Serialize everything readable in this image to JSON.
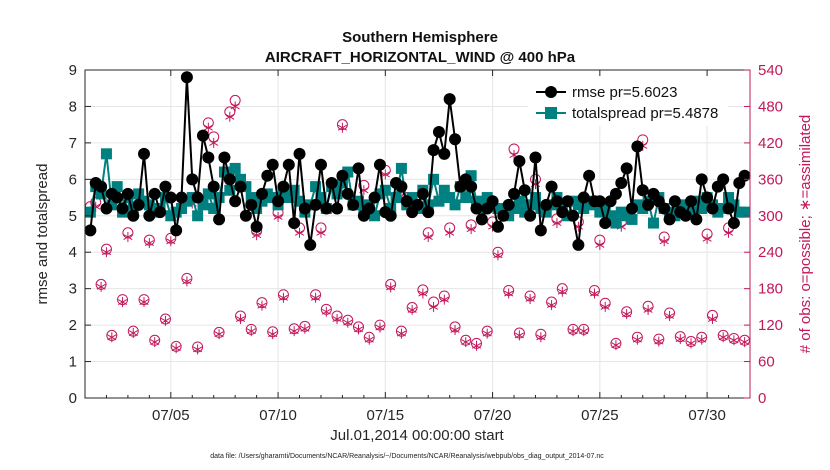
{
  "chart_data": {
    "type": "line",
    "title": [
      "Southern Hemisphere",
      "AIRCRAFT_HORIZONTAL_WIND @ 400 hPa"
    ],
    "xlabel": "Jul.01,2014 00:00:00 start",
    "ylabel": "rmse and totalspread",
    "ylabel_right": "# of obs: o=possible; ∗=assimilated",
    "footnote": "data file: /Users/gharamti/Documents/NCAR/Reanalysis/~/Documents/NCAR/Reanalysis/webpub/obs_diag_output_2014-07.nc",
    "xlim": [
      1.0,
      32.0
    ],
    "ylim": [
      0,
      9
    ],
    "ylim_right": [
      0,
      540
    ],
    "xticks": [
      5,
      10,
      15,
      20,
      25,
      30
    ],
    "xtick_labels": [
      "07/05",
      "07/10",
      "07/15",
      "07/20",
      "07/25",
      "07/30"
    ],
    "yticks": [
      0,
      1,
      2,
      3,
      4,
      5,
      6,
      7,
      8,
      9
    ],
    "yticks_right": [
      0,
      60,
      120,
      180,
      240,
      300,
      360,
      420,
      480,
      540
    ],
    "grid": true,
    "legend_position": "top-right",
    "colors": {
      "rmse": "#000000",
      "totalspread": "#008080",
      "obs": "#c2185b"
    },
    "series": [
      {
        "name": "rmse pr=5.6023",
        "axis": "left",
        "x": [
          1.25,
          1.5,
          1.75,
          2.0,
          2.25,
          2.5,
          2.75,
          3.0,
          3.25,
          3.5,
          3.75,
          4.0,
          4.25,
          4.5,
          4.75,
          5.0,
          5.25,
          5.5,
          5.75,
          6.0,
          6.25,
          6.5,
          6.75,
          7.0,
          7.25,
          7.5,
          7.75,
          8.0,
          8.25,
          8.5,
          8.75,
          9.0,
          9.25,
          9.5,
          9.75,
          10.0,
          10.25,
          10.5,
          10.75,
          11.0,
          11.25,
          11.5,
          11.75,
          12.0,
          12.25,
          12.5,
          12.75,
          13.0,
          13.25,
          13.5,
          13.75,
          14.0,
          14.25,
          14.5,
          14.75,
          15.0,
          15.25,
          15.5,
          15.75,
          16.0,
          16.25,
          16.5,
          16.75,
          17.0,
          17.25,
          17.5,
          17.75,
          18.0,
          18.25,
          18.5,
          18.75,
          19.0,
          19.25,
          19.5,
          19.75,
          20.0,
          20.25,
          20.5,
          20.75,
          21.0,
          21.25,
          21.5,
          21.75,
          22.0,
          22.25,
          22.5,
          22.75,
          23.0,
          23.25,
          23.5,
          23.75,
          24.0,
          24.25,
          24.5,
          24.75,
          25.0,
          25.25,
          25.5,
          25.75,
          26.0,
          26.25,
          26.5,
          26.75,
          27.0,
          27.25,
          27.5,
          27.75,
          28.0,
          28.25,
          28.5,
          28.75,
          29.0,
          29.25,
          29.5,
          29.75,
          30.0,
          30.25,
          30.5,
          30.75,
          31.0,
          31.25,
          31.5,
          31.75
        ],
        "values": [
          4.6,
          5.9,
          5.8,
          5.2,
          5.6,
          5.5,
          5.2,
          5.6,
          5.0,
          5.3,
          6.7,
          5.0,
          5.6,
          5.1,
          5.8,
          5.5,
          4.6,
          5.5,
          8.8,
          6.0,
          5.5,
          7.2,
          6.6,
          5.8,
          4.9,
          6.6,
          6.0,
          5.4,
          5.8,
          5.0,
          5.3,
          4.7,
          5.6,
          6.1,
          6.4,
          5.4,
          5.8,
          6.4,
          4.8,
          6.7,
          5.2,
          4.2,
          5.3,
          6.4,
          5.2,
          5.9,
          5.2,
          6.1,
          5.6,
          5.3,
          6.3,
          5.0,
          5.2,
          5.5,
          6.4,
          5.1,
          5.0,
          5.9,
          5.8,
          5.4,
          5.1,
          5.3,
          5.6,
          5.1,
          6.8,
          7.3,
          6.7,
          8.2,
          7.1,
          5.8,
          6.0,
          5.8,
          5.2,
          4.9,
          5.2,
          5.4,
          4.7,
          5.0,
          5.3,
          5.6,
          6.5,
          5.7,
          5.0,
          6.6,
          4.6,
          5.3,
          5.8,
          5.4,
          5.1,
          5.4,
          5.0,
          4.2,
          5.5,
          6.1,
          5.4,
          5.4,
          4.8,
          5.4,
          5.6,
          5.9,
          6.3,
          5.2,
          6.9,
          5.7,
          5.3,
          5.6,
          5.4,
          5.2,
          4.9,
          5.4,
          5.1,
          5.0,
          5.4,
          4.9,
          6.0,
          5.5,
          5.2,
          5.8,
          6.0,
          5.2,
          4.8,
          5.9,
          6.1
        ]
      },
      {
        "name": "totalspread pr=5.4878",
        "axis": "left",
        "x": [
          1.25,
          1.5,
          1.75,
          2.0,
          2.25,
          2.5,
          2.75,
          3.0,
          3.25,
          3.5,
          3.75,
          4.0,
          4.25,
          4.5,
          4.75,
          5.0,
          5.25,
          5.5,
          5.75,
          6.0,
          6.25,
          6.5,
          6.75,
          7.0,
          7.25,
          7.5,
          7.75,
          8.0,
          8.25,
          8.5,
          8.75,
          9.0,
          9.25,
          9.5,
          9.75,
          10.0,
          10.25,
          10.5,
          10.75,
          11.0,
          11.25,
          11.5,
          11.75,
          12.0,
          12.25,
          12.5,
          12.75,
          13.0,
          13.25,
          13.5,
          13.75,
          14.0,
          14.25,
          14.5,
          14.75,
          15.0,
          15.25,
          15.5,
          15.75,
          16.0,
          16.25,
          16.5,
          16.75,
          17.0,
          17.25,
          17.5,
          17.75,
          18.0,
          18.25,
          18.5,
          18.75,
          19.0,
          19.25,
          19.5,
          19.75,
          20.0,
          20.25,
          20.5,
          20.75,
          21.0,
          21.25,
          21.5,
          21.75,
          22.0,
          22.25,
          22.5,
          22.75,
          23.0,
          23.25,
          23.5,
          23.75,
          24.0,
          24.25,
          24.5,
          24.75,
          25.0,
          25.25,
          25.5,
          25.75,
          26.0,
          26.25,
          26.5,
          26.75,
          27.0,
          27.25,
          27.5,
          27.75,
          28.0,
          28.25,
          28.5,
          28.75,
          29.0,
          29.25,
          29.5,
          29.75,
          30.0,
          30.25,
          30.5,
          30.75,
          31.0,
          31.25,
          31.5,
          31.75
        ],
        "values": [
          5.1,
          5.8,
          5.6,
          6.7,
          5.3,
          5.8,
          5.1,
          5.5,
          5.2,
          5.6,
          5.4,
          5.3,
          5.1,
          5.2,
          5.5,
          5.0,
          5.1,
          5.2,
          5.4,
          5.5,
          5.0,
          5.3,
          5.6,
          5.2,
          5.5,
          6.2,
          5.7,
          6.3,
          6.0,
          5.8,
          5.5,
          5.2,
          5.4,
          5.6,
          5.5,
          5.3,
          5.6,
          5.5,
          5.7,
          5.4,
          5.1,
          5.3,
          5.8,
          5.5,
          5.2,
          5.8,
          5.6,
          5.9,
          6.2,
          5.3,
          5.4,
          5.1,
          5.3,
          5.0,
          5.6,
          5.7,
          5.2,
          5.5,
          6.3,
          5.3,
          5.5,
          5.2,
          5.7,
          5.3,
          6.0,
          5.4,
          5.7,
          5.5,
          5.3,
          5.8,
          5.5,
          6.1,
          5.4,
          5.2,
          5.5,
          5.3,
          5.2,
          5.1,
          5.0,
          5.2,
          5.4,
          5.1,
          5.3,
          5.5,
          5.2,
          5.1,
          5.3,
          5.5,
          5.2,
          5.0,
          5.4,
          5.3,
          5.2,
          5.3,
          5.4,
          5.1,
          5.2,
          5.0,
          4.8,
          5.1,
          5.0,
          4.9,
          5.3,
          5.2,
          5.4,
          4.8,
          5.5,
          5.2,
          5.1,
          5.0,
          5.2,
          5.3,
          5.1,
          5.4,
          5.2,
          5.5,
          5.3,
          5.1,
          5.2,
          5.5,
          5.3,
          5.1,
          5.1
        ]
      },
      {
        "name": "possible",
        "axis": "right",
        "marker": "circle",
        "x": [
          1.25,
          1.75,
          2.25,
          2.75,
          3.25,
          3.75,
          4.25,
          4.75,
          5.25,
          5.75,
          6.25,
          6.75,
          7.25,
          7.75,
          8.25,
          8.75,
          9.25,
          9.75,
          10.25,
          10.75,
          11.25,
          11.75,
          12.25,
          12.75,
          13.25,
          13.75,
          14.25,
          14.75,
          15.25,
          15.75,
          16.25,
          16.75,
          17.25,
          17.75,
          18.25,
          18.75,
          19.25,
          19.75,
          20.25,
          20.75,
          21.25,
          21.75,
          22.25,
          22.75,
          23.25,
          23.75,
          24.25,
          24.75,
          25.25,
          25.75,
          26.25,
          26.75,
          27.25,
          27.75,
          28.25,
          28.75,
          29.25,
          29.75,
          30.25,
          30.75,
          31.25,
          31.75,
          1.5,
          2.0,
          3.0,
          4.0,
          5.0,
          6.0,
          7.0,
          8.0,
          9.0,
          10.0,
          11.0,
          12.0,
          13.0,
          14.0,
          15.0,
          16.0,
          17.0,
          18.0,
          19.0,
          20.0,
          21.0,
          22.0,
          23.0,
          24.0,
          25.0,
          26.0,
          27.0,
          28.0,
          29.0,
          30.0,
          31.0
        ],
        "values": [
          315,
          187,
          103,
          162,
          110,
          162,
          95,
          130,
          85,
          197,
          84,
          453,
          108,
          471,
          135,
          113,
          157,
          109,
          170,
          114,
          118,
          170,
          146,
          135,
          128,
          117,
          100,
          120,
          187,
          110,
          149,
          178,
          158,
          168,
          117,
          95,
          90,
          110,
          240,
          177,
          107,
          168,
          105,
          158,
          180,
          113,
          113,
          177,
          156,
          90,
          142,
          100,
          151,
          97,
          140,
          101,
          93,
          100,
          136,
          103,
          98,
          95,
          322,
          245,
          272,
          260,
          263,
          330,
          430,
          490,
          275,
          305,
          280,
          280,
          450,
          350,
          375,
          330,
          272,
          280,
          285,
          290,
          410,
          360,
          295,
          290,
          260,
          290,
          425,
          265,
          315,
          270,
          280
        ]
      },
      {
        "name": "assimilated",
        "axis": "right",
        "marker": "asterisk",
        "x": [
          1.25,
          1.75,
          2.25,
          2.75,
          3.25,
          3.75,
          4.25,
          4.75,
          5.25,
          5.75,
          6.25,
          6.75,
          7.25,
          7.75,
          8.25,
          8.75,
          9.25,
          9.75,
          10.25,
          10.75,
          11.25,
          11.75,
          12.25,
          12.75,
          13.25,
          13.75,
          14.25,
          14.75,
          15.25,
          15.75,
          16.25,
          16.75,
          17.25,
          17.75,
          18.25,
          18.75,
          19.25,
          19.75,
          20.25,
          20.75,
          21.25,
          21.75,
          22.25,
          22.75,
          23.25,
          23.75,
          24.25,
          24.75,
          25.25,
          25.75,
          26.25,
          26.75,
          27.25,
          27.75,
          28.25,
          28.75,
          29.25,
          29.75,
          30.25,
          30.75,
          31.25,
          31.75,
          1.5,
          2.0,
          3.0,
          4.0,
          5.0,
          6.0,
          7.0,
          8.0,
          9.0,
          10.0,
          11.0,
          12.0,
          13.0,
          14.0,
          15.0,
          16.0,
          17.0,
          18.0,
          19.0,
          20.0,
          21.0,
          22.0,
          23.0,
          24.0,
          25.0,
          26.0,
          27.0,
          28.0,
          29.0,
          30.0,
          31.0
        ],
        "values": [
          305,
          183,
          100,
          158,
          107,
          158,
          92,
          127,
          82,
          192,
          80,
          445,
          105,
          463,
          130,
          110,
          152,
          105,
          165,
          110,
          114,
          165,
          142,
          130,
          124,
          113,
          96,
          116,
          182,
          106,
          145,
          172,
          150,
          162,
          112,
          92,
          86,
          106,
          235,
          172,
          103,
          163,
          100,
          153,
          175,
          110,
          110,
          172,
          150,
          87,
          138,
          96,
          145,
          93,
          135,
          97,
          90,
          96,
          130,
          100,
          95,
          92,
          315,
          240,
          265,
          255,
          258,
          320,
          420,
          480,
          268,
          298,
          272,
          272,
          445,
          342,
          368,
          322,
          265,
          272,
          278,
          282,
          400,
          352,
          288,
          282,
          252,
          282,
          415,
          258,
          305,
          262,
          272
        ]
      }
    ]
  }
}
